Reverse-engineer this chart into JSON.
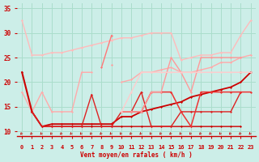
{
  "bg_color": "#cceee8",
  "grid_color": "#aaddcc",
  "xlabel": "Vent moyen/en rafales ( km/h )",
  "xlabel_color": "#cc0000",
  "tick_color": "#cc0000",
  "xlim": [
    -0.5,
    23.5
  ],
  "ylim": [
    9,
    36
  ],
  "yticks": [
    10,
    15,
    20,
    25,
    30,
    35
  ],
  "xticks": [
    0,
    1,
    2,
    3,
    4,
    5,
    6,
    7,
    8,
    9,
    10,
    11,
    12,
    13,
    14,
    15,
    16,
    17,
    18,
    19,
    20,
    21,
    22,
    23
  ],
  "series": [
    {
      "y": [
        32.5,
        25.5,
        25.5,
        26,
        26,
        26.5,
        27,
        27.5,
        28,
        28.5,
        29,
        29,
        29.5,
        30,
        30,
        30,
        24.5,
        25,
        25.5,
        25.5,
        26,
        26,
        29.5,
        32.5
      ],
      "color": "#ffbbbb",
      "lw": 1.0
    },
    {
      "y": [
        null,
        null,
        null,
        null,
        null,
        null,
        null,
        null,
        23,
        29.5,
        null,
        null,
        null,
        null,
        null,
        null,
        null,
        null,
        null,
        null,
        null,
        null,
        null,
        null
      ],
      "color": "#ff7777",
      "lw": 1.0
    },
    {
      "y": [
        18,
        14,
        18,
        14,
        14,
        14,
        22,
        22,
        null,
        null,
        20,
        20.5,
        22,
        22,
        22.5,
        23,
        22,
        22,
        22.5,
        23,
        24,
        24,
        25,
        25.5
      ],
      "color": "#ffaaaa",
      "lw": 1.0
    },
    {
      "y": [
        null,
        null,
        null,
        null,
        null,
        null,
        null,
        null,
        null,
        23.5,
        null,
        null,
        null,
        null,
        null,
        null,
        null,
        null,
        null,
        null,
        null,
        null,
        null,
        null
      ],
      "color": "#ff9999",
      "lw": 1.0
    },
    {
      "y": [
        null,
        14,
        11,
        11.5,
        11.5,
        11.5,
        11.5,
        11.5,
        11.5,
        11.5,
        13,
        13,
        14,
        14.5,
        15,
        15.5,
        16,
        17,
        17.5,
        18,
        18.5,
        19,
        20,
        22
      ],
      "color": "#cc0000",
      "lw": 1.3
    },
    {
      "y": [
        22,
        14,
        null,
        null,
        null,
        null,
        null,
        null,
        null,
        null,
        null,
        null,
        null,
        null,
        null,
        null,
        null,
        null,
        null,
        null,
        null,
        null,
        22,
        null
      ],
      "color": "#cc0000",
      "lw": 1.5
    },
    {
      "y": [
        null,
        14,
        11,
        11,
        11,
        11,
        11,
        11,
        11,
        11,
        11,
        11,
        11,
        11,
        11,
        11,
        11,
        11,
        11,
        11,
        11,
        11,
        11,
        null
      ],
      "color": "#cc0000",
      "lw": 1.0
    },
    {
      "y": [
        null,
        14,
        11,
        11,
        11,
        11,
        11,
        17.5,
        11,
        11,
        14,
        14,
        18,
        11,
        11,
        11,
        14,
        14,
        14,
        14,
        14,
        14,
        18,
        null
      ],
      "color": "#dd2222",
      "lw": 1.0
    },
    {
      "y": [
        null,
        null,
        null,
        null,
        null,
        null,
        null,
        null,
        null,
        null,
        14,
        14,
        14,
        18,
        18,
        18,
        14,
        11,
        18,
        18,
        18,
        18,
        18,
        18
      ],
      "color": "#ee3333",
      "lw": 1.1
    },
    {
      "y": [
        null,
        null,
        null,
        null,
        null,
        null,
        null,
        null,
        null,
        null,
        14,
        14,
        14,
        18,
        18,
        25,
        22,
        18,
        25,
        25,
        25,
        25,
        25,
        null
      ],
      "color": "#ff9999",
      "lw": 1.0
    },
    {
      "y": [
        null,
        null,
        null,
        null,
        null,
        null,
        null,
        null,
        null,
        null,
        14,
        18,
        22,
        22,
        22,
        22,
        22,
        22,
        22,
        22,
        22,
        22,
        22,
        22
      ],
      "color": "#ffcccc",
      "lw": 1.0
    }
  ]
}
